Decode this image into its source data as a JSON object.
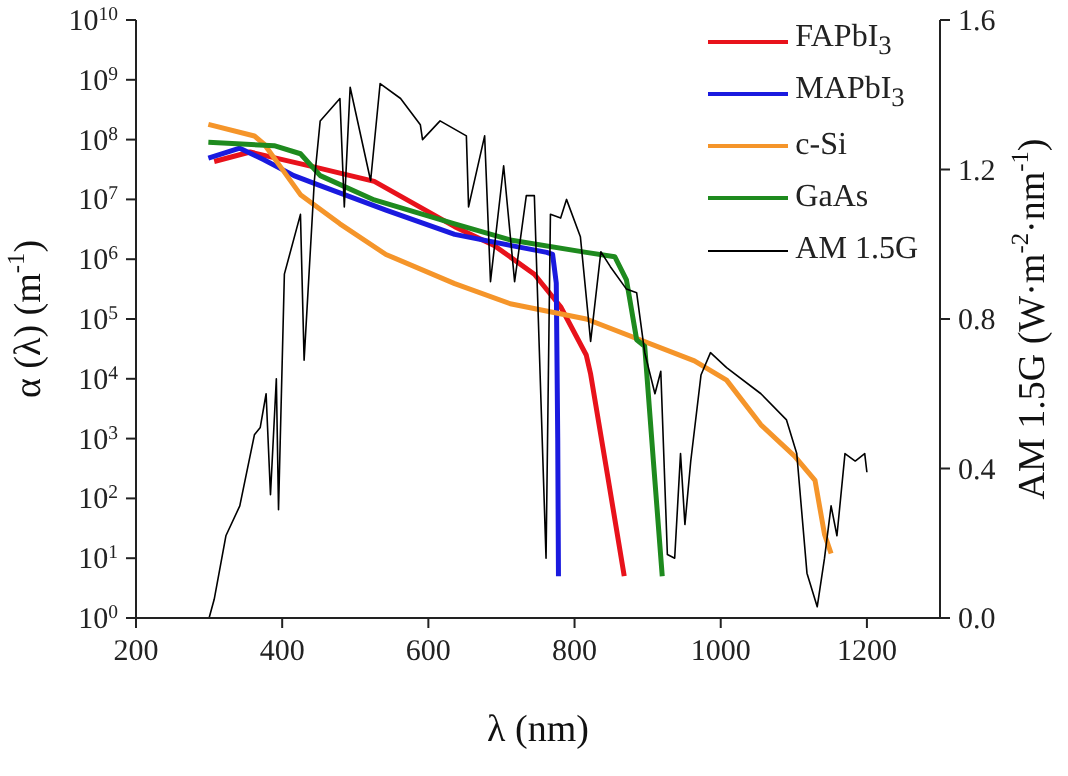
{
  "chart_data": {
    "type": "line",
    "xlabel": "λ (nm)",
    "ylabel": "α (λ) (m$^{-1}$)",
    "y2label": "AM 1.5G (W·m$^{-2}$·nm$^{-1}$)",
    "log": "y",
    "legend": "top right",
    "xlim": [
      200,
      1300
    ],
    "xticks": [
      200,
      400,
      600,
      800,
      1000,
      1200
    ],
    "ylim": [
      1,
      10000000000
    ],
    "yticks": [
      {
        "value": 1,
        "label": "10$^{0}$"
      },
      {
        "value": 10,
        "label": "10$^{1}$"
      },
      {
        "value": 100,
        "label": "10$^{2}$"
      },
      {
        "value": 1000,
        "label": "10$^{3}$"
      },
      {
        "value": 10000,
        "label": "10$^{4}$"
      },
      {
        "value": 100000,
        "label": "10$^{5}$"
      },
      {
        "value": 1000000,
        "label": "10$^{6}$"
      },
      {
        "value": 10000000,
        "label": "10$^{7}$"
      },
      {
        "value": 100000000,
        "label": "10$^{8}$"
      },
      {
        "value": 1000000000,
        "label": "10$^{9}$"
      },
      {
        "value": 10000000000,
        "label": "10$^{10}$"
      }
    ],
    "y2lim": [
      0,
      1.6
    ],
    "y2ticks": [
      {
        "value": 0,
        "label": "0.0"
      },
      {
        "value": 0.4,
        "label": "0.4"
      },
      {
        "value": 0.8,
        "label": "0.8"
      },
      {
        "value": 1.2,
        "label": "1.2"
      },
      {
        "value": 1.6,
        "label": "1.6"
      }
    ],
    "series": [
      {
        "name": "FAPbI$_{3}$",
        "color": "#e8121b",
        "x": [
          307,
          356,
          452,
          526,
          636,
          690,
          745,
          781,
          816,
          822,
          845,
          868
        ],
        "values": [
          43000000,
          62000000,
          33000000,
          20000000,
          3500000,
          1700000,
          560000,
          160000,
          25000,
          12000,
          250,
          5
        ]
      },
      {
        "name": "MAPbI$_{3}$",
        "color": "#1a1adf",
        "x": [
          299,
          342,
          375,
          416,
          452,
          542,
          636,
          712,
          762,
          770,
          775,
          777,
          778
        ],
        "values": [
          49000000,
          72000000,
          46000000,
          25000000,
          17000000,
          6600000,
          2600000,
          1700000,
          1300000,
          1200000,
          400000,
          1000,
          5
        ]
      },
      {
        "name": "c-Si",
        "color": "#f5952a",
        "x": [
          299,
          362,
          375,
          397,
          425,
          479,
          542,
          636,
          712,
          816,
          964,
          1008,
          1055,
          1101,
          1129,
          1142,
          1151
        ],
        "values": [
          180000000,
          115000000,
          85000000,
          36000000,
          12000000,
          3900000,
          1200000,
          390000,
          180000,
          100000,
          20000,
          9500,
          1700,
          510,
          200,
          25,
          12
        ]
      },
      {
        "name": "GaAs",
        "color": "#1e8a1e",
        "x": [
          299,
          389,
          425,
          452,
          526,
          636,
          712,
          816,
          855,
          871,
          885,
          896,
          908,
          920
        ],
        "values": [
          90000000,
          79000000,
          58000000,
          25000000,
          9800000,
          3900000,
          2100000,
          1300000,
          1100000,
          450000,
          45000,
          35000,
          400,
          5
        ]
      },
      {
        "name": "AM 1.5G",
        "color": "#000000",
        "axis": "y2",
        "x": [
          300,
          307,
          323,
          342,
          362,
          370,
          378,
          384,
          392,
          395,
          403,
          425,
          430,
          444,
          452,
          479,
          485,
          493,
          521,
          534,
          562,
          589,
          592,
          616,
          652,
          655,
          677,
          685,
          703,
          718,
          734,
          745,
          761,
          767,
          781,
          789,
          808,
          822,
          836,
          849,
          871,
          885,
          896,
          910,
          918,
          927,
          937,
          945,
          951,
          959,
          973,
          986,
          1008,
          1055,
          1090,
          1104,
          1118,
          1132,
          1142,
          1151,
          1159,
          1170,
          1184,
          1197,
          1200
        ],
        "values": [
          0,
          0.05,
          0.22,
          0.3,
          0.49,
          0.51,
          0.6,
          0.33,
          0.64,
          0.29,
          0.92,
          1.08,
          0.69,
          1.17,
          1.33,
          1.39,
          1.1,
          1.42,
          1.17,
          1.43,
          1.39,
          1.32,
          1.28,
          1.33,
          1.29,
          1.1,
          1.29,
          0.9,
          1.21,
          0.9,
          1.13,
          1.13,
          0.16,
          1.08,
          1.07,
          1.12,
          1.02,
          0.74,
          0.98,
          0.94,
          0.88,
          0.87,
          0.71,
          0.6,
          0.66,
          0.17,
          0.16,
          0.44,
          0.25,
          0.42,
          0.65,
          0.71,
          0.67,
          0.6,
          0.53,
          0.44,
          0.12,
          0.03,
          0.16,
          0.3,
          0.22,
          0.44,
          0.42,
          0.44,
          0.39
        ]
      }
    ]
  }
}
